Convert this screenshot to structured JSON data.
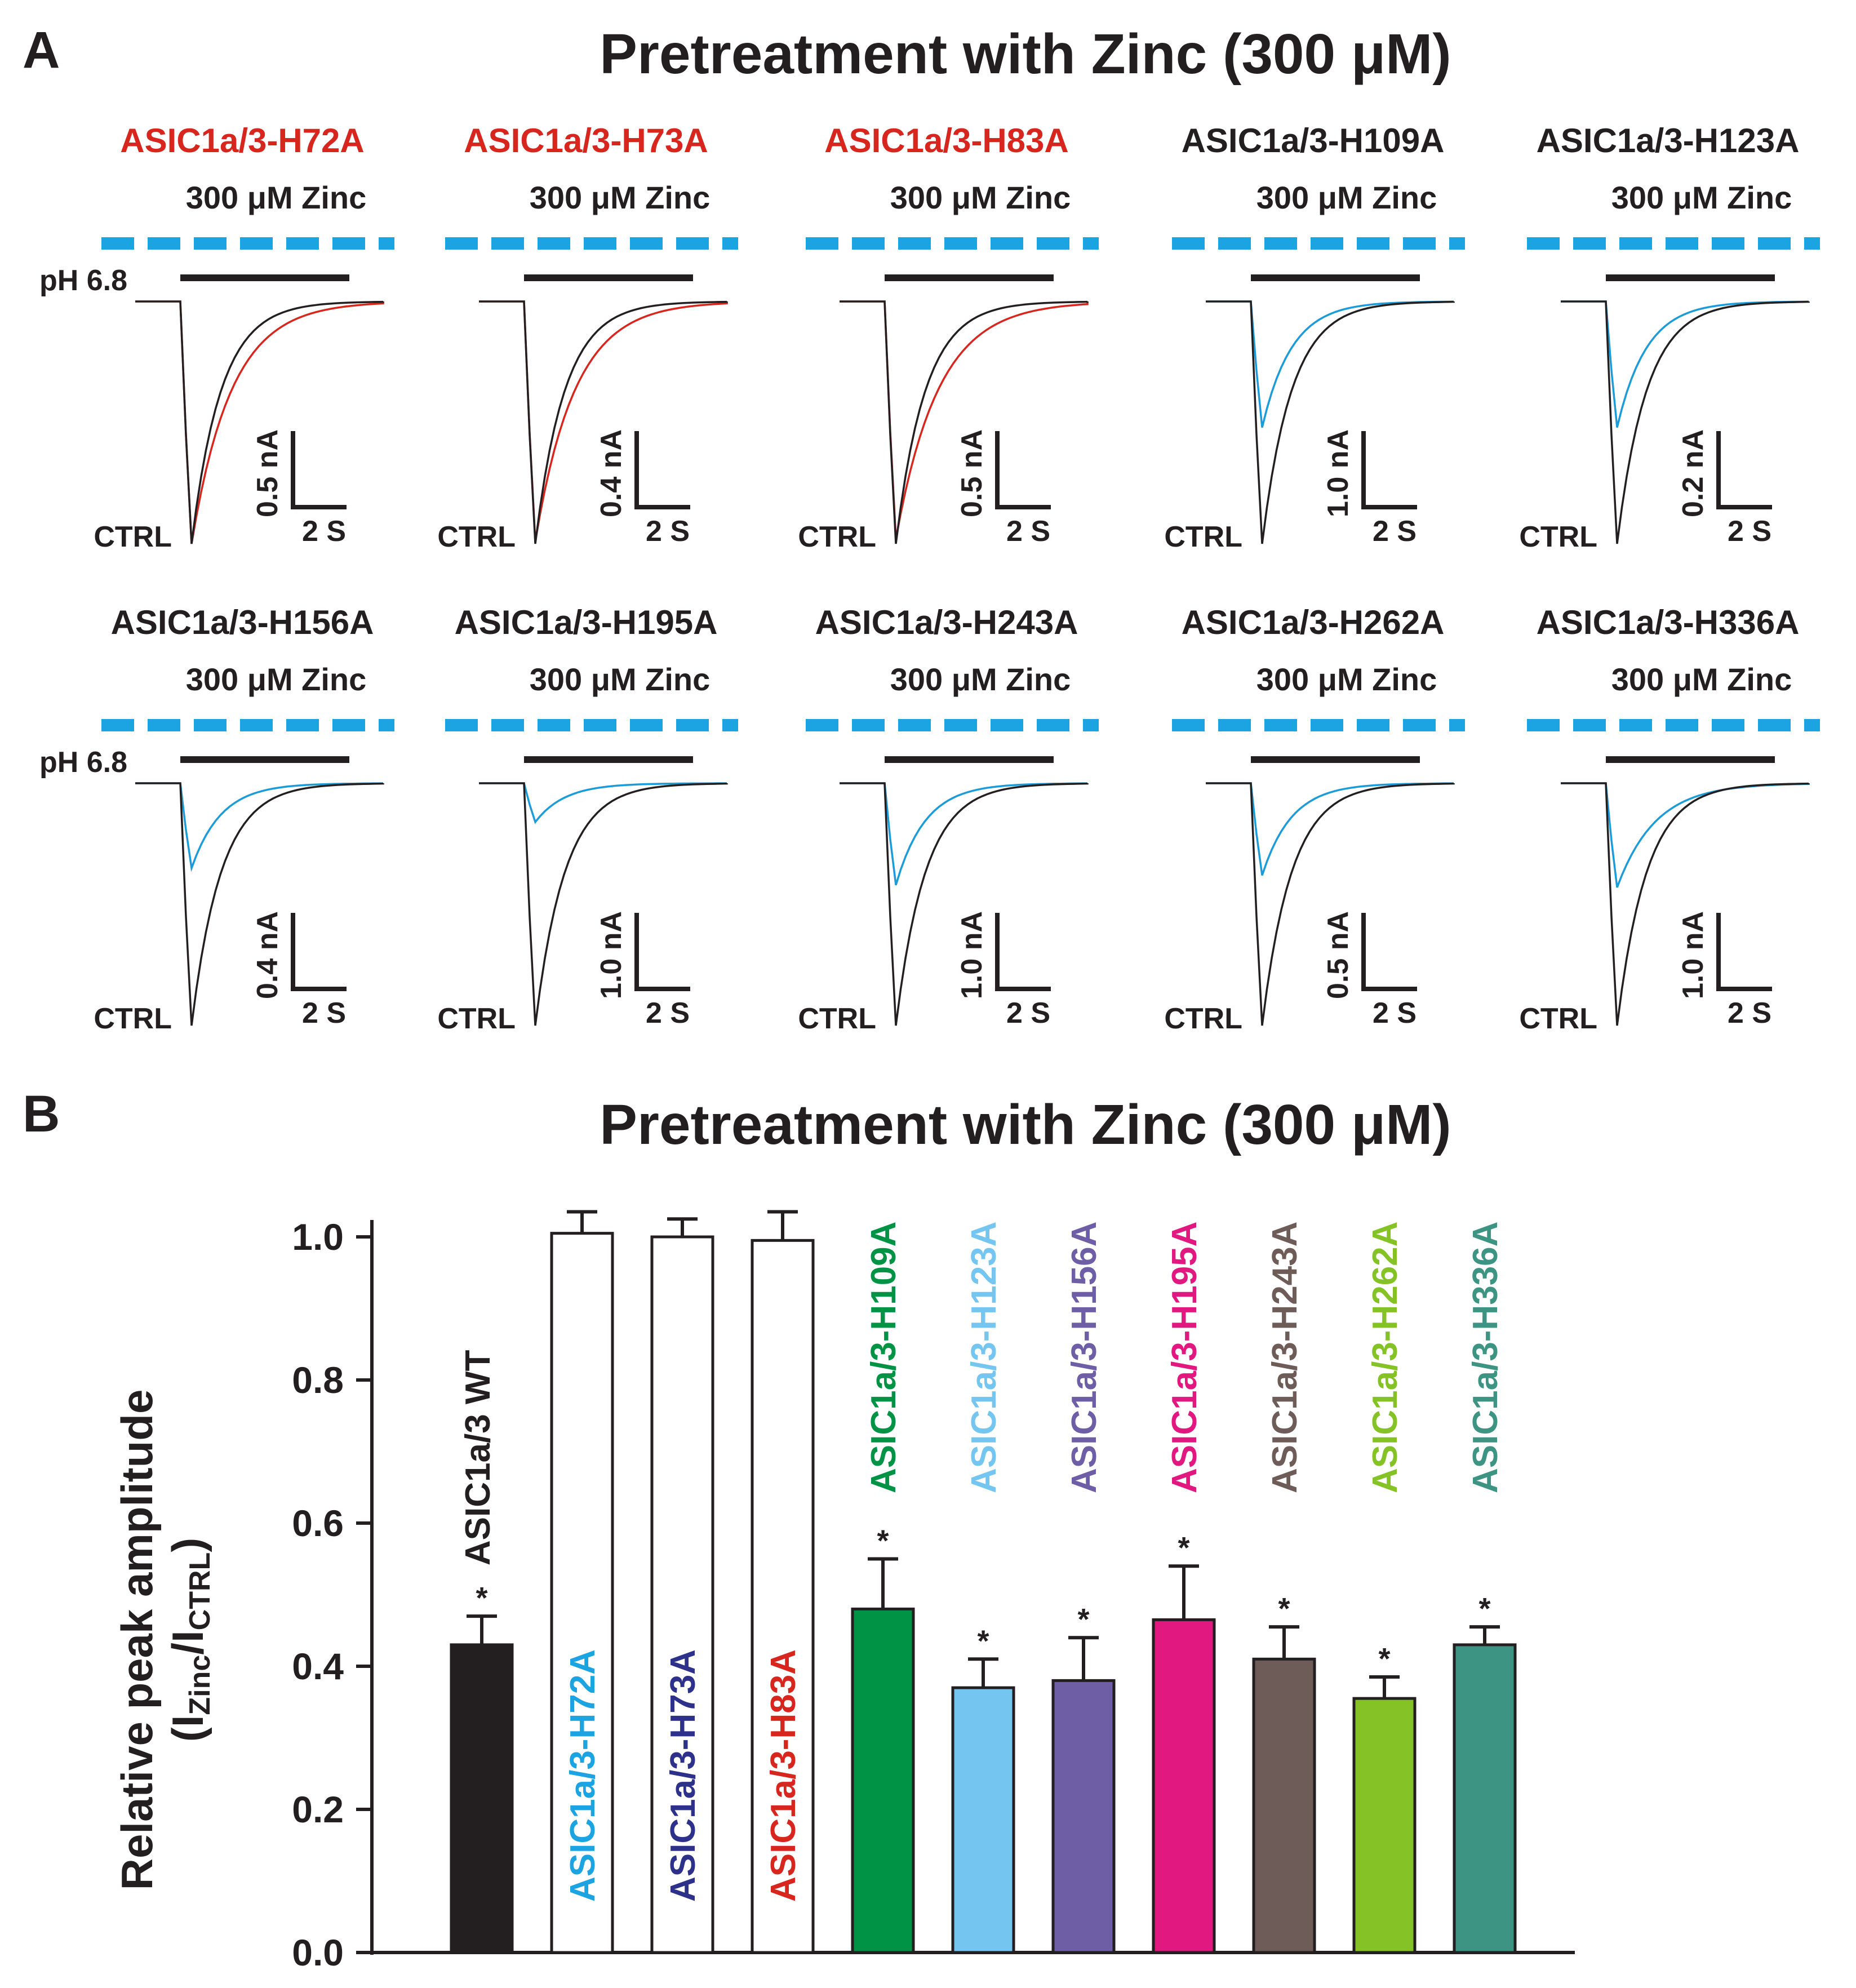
{
  "panel_a": {
    "letter": "A",
    "title": "Pretreatment with Zinc (300 μM)",
    "ph_label": "pH 6.8",
    "zinc_label": "300 μM Zinc",
    "ctrl_label": "CTRL",
    "time_scale": "2 S",
    "colors": {
      "red": "#d7261e",
      "black": "#231f20",
      "blue": "#1b9bd7",
      "zinc_bar": "#1ba3e2"
    },
    "traces": [
      {
        "title": "ASIC1a/3-H72A",
        "title_color": "#d7261e",
        "current_scale": "0.5 nA",
        "zinc_trace_color": "#d7261e"
      },
      {
        "title": "ASIC1a/3-H73A",
        "title_color": "#d7261e",
        "current_scale": "0.4 nA",
        "zinc_trace_color": "#d7261e"
      },
      {
        "title": "ASIC1a/3-H83A",
        "title_color": "#d7261e",
        "current_scale": "0.5 nA",
        "zinc_trace_color": "#d7261e"
      },
      {
        "title": "ASIC1a/3-H109A",
        "title_color": "#231f20",
        "current_scale": "1.0 nA",
        "zinc_trace_color": "#1b9bd7"
      },
      {
        "title": "ASIC1a/3-H123A",
        "title_color": "#231f20",
        "current_scale": "0.2 nA",
        "zinc_trace_color": "#1b9bd7"
      },
      {
        "title": "ASIC1a/3-H156A",
        "title_color": "#231f20",
        "current_scale": "0.4 nA",
        "zinc_trace_color": "#1b9bd7"
      },
      {
        "title": "ASIC1a/3-H195A",
        "title_color": "#231f20",
        "current_scale": "1.0 nA",
        "zinc_trace_color": "#1b9bd7"
      },
      {
        "title": "ASIC1a/3-H243A",
        "title_color": "#231f20",
        "current_scale": "1.0 nA",
        "zinc_trace_color": "#1b9bd7"
      },
      {
        "title": "ASIC1a/3-H262A",
        "title_color": "#231f20",
        "current_scale": "0.5 nA",
        "zinc_trace_color": "#1b9bd7"
      },
      {
        "title": "ASIC1a/3-H336A",
        "title_color": "#231f20",
        "current_scale": "1.0 nA",
        "zinc_trace_color": "#1b9bd7"
      }
    ]
  },
  "panel_b": {
    "letter": "B",
    "title": "Pretreatment with Zinc (300 μM)"
  },
  "chart_data": {
    "type": "bar",
    "title": "Pretreatment with Zinc (300 μM)",
    "ylabel": "Relative peak amplitude",
    "ylabel_sub_prefix": "(I",
    "ylabel_sub1": "Zinc",
    "ylabel_mid": "/I",
    "ylabel_sub2": "CTRL",
    "ylabel_suffix": ")",
    "ylim": [
      0,
      1.0
    ],
    "yticks": [
      "0.0",
      "0.2",
      "0.4",
      "0.6",
      "0.8",
      "1.0"
    ],
    "yticks_values": [
      0,
      0.2,
      0.4,
      0.6,
      0.8,
      1.0
    ],
    "categories": [
      "ASIC1a/3 WT",
      "ASIC1a/3-H72A",
      "ASIC1a/3-H73A",
      "ASIC1a/3-H83A",
      "ASIC1a/3-H109A",
      "ASIC1a/3-H123A",
      "ASIC1a/3-H156A",
      "ASIC1a/3-H195A",
      "ASIC1a/3-H243A",
      "ASIC1a/3-H262A",
      "ASIC1a/3-H336A"
    ],
    "values": [
      0.43,
      1.005,
      1.0,
      0.995,
      0.48,
      0.37,
      0.38,
      0.465,
      0.41,
      0.355,
      0.43
    ],
    "errors": [
      0.04,
      0.03,
      0.025,
      0.04,
      0.07,
      0.04,
      0.06,
      0.075,
      0.045,
      0.03,
      0.025
    ],
    "significant": [
      true,
      false,
      false,
      false,
      true,
      true,
      true,
      true,
      true,
      true,
      true
    ],
    "star_symbol": "*",
    "bar_fill": [
      "#231f20",
      "#ffffff",
      "#ffffff",
      "#ffffff",
      "#009345",
      "#74c6f0",
      "#6d5ea6",
      "#e0187f",
      "#6d5c57",
      "#84c225",
      "#3e9482"
    ],
    "label_color": [
      "#231f20",
      "#1ba3e2",
      "#2e3189",
      "#d7261e",
      "#009345",
      "#74c6f0",
      "#6d5ea6",
      "#e0187f",
      "#6d5c57",
      "#84c225",
      "#3e9482"
    ]
  }
}
